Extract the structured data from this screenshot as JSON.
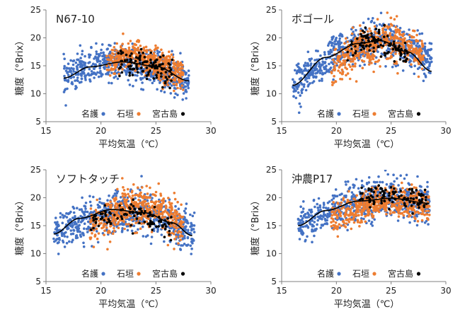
{
  "chart_data": [
    {
      "type": "scatter",
      "title": "N67-10",
      "xlabel": "平均気温（℃）",
      "ylabel": "糖度（°Brix）",
      "xlim": [
        15,
        30
      ],
      "ylim": [
        5,
        25
      ],
      "xticks": [
        "15",
        "20",
        "25",
        "30"
      ],
      "yticks": [
        "5",
        "10",
        "15",
        "20",
        "25"
      ],
      "grid": false,
      "legend_placement": "bottom-center",
      "series": [
        {
          "name": "名護",
          "color": "#4472C4",
          "x_range": [
            16.6,
            28.0
          ],
          "y_mean": [
            13.0,
            15.6,
            15.0,
            12.4
          ],
          "y_spread": 2.0
        },
        {
          "name": "石垣",
          "color": "#ED7D31",
          "x_range": [
            20.5,
            27.5
          ],
          "y_mean": [
            15.5,
            17.0,
            15.0,
            13.5
          ],
          "y_spread": 1.8
        },
        {
          "name": "宮古島",
          "color": "#000000",
          "x_range": [
            21.5,
            26.5
          ],
          "y_mean": [
            16.0,
            15.5,
            15.0,
            13.5
          ],
          "y_spread": 1.6
        }
      ],
      "trendline": {
        "points": [
          [
            16.6,
            12.8
          ],
          [
            19,
            14.8
          ],
          [
            22,
            15.7
          ],
          [
            25,
            14.9
          ],
          [
            28,
            12.3
          ]
        ],
        "color": "#000000"
      }
    },
    {
      "type": "scatter",
      "title": "ボゴール",
      "xlabel": "平均気温（℃）",
      "ylabel": "糖度（°Brix）",
      "xlim": [
        15,
        30
      ],
      "ylim": [
        5,
        25
      ],
      "xticks": [
        "15",
        "20",
        "25",
        "30"
      ],
      "yticks": [
        "5",
        "10",
        "15",
        "20",
        "25"
      ],
      "grid": false,
      "legend_placement": "bottom-center",
      "series": [
        {
          "name": "名護",
          "color": "#4472C4",
          "x_range": [
            16.0,
            28.7
          ],
          "y_mean": [
            11.5,
            17.5,
            20.0,
            15.5
          ],
          "y_spread": 2.3
        },
        {
          "name": "石垣",
          "color": "#ED7D31",
          "x_range": [
            19.5,
            28.0
          ],
          "y_mean": [
            14.5,
            18.5,
            19.5,
            17.0
          ],
          "y_spread": 2.2
        },
        {
          "name": "宮古島",
          "color": "#000000",
          "x_range": [
            21.0,
            26.5
          ],
          "y_mean": [
            17.5,
            19.5,
            19.0,
            17.0
          ],
          "y_spread": 1.6
        }
      ],
      "trendline": {
        "points": [
          [
            16,
            11.5
          ],
          [
            19,
            16.5
          ],
          [
            22,
            19.0
          ],
          [
            24,
            19.5
          ],
          [
            26.5,
            17.5
          ],
          [
            28.7,
            14.0
          ]
        ],
        "color": "#000000"
      }
    },
    {
      "type": "scatter",
      "title": "ソフトタッチ",
      "xlabel": "平均気温（℃）",
      "ylabel": "糖度（°Brix）",
      "xlim": [
        15,
        30
      ],
      "ylim": [
        5,
        25
      ],
      "xticks": [
        "15",
        "20",
        "25",
        "30"
      ],
      "yticks": [
        "5",
        "10",
        "15",
        "20",
        "25"
      ],
      "grid": false,
      "legend_placement": "bottom-center",
      "series": [
        {
          "name": "名護",
          "color": "#4472C4",
          "x_range": [
            15.7,
            28.5
          ],
          "y_mean": [
            13.5,
            17.0,
            17.5,
            13.5
          ],
          "y_spread": 2.4
        },
        {
          "name": "石垣",
          "color": "#ED7D31",
          "x_range": [
            19.0,
            27.5
          ],
          "y_mean": [
            15.0,
            17.5,
            18.5,
            15.5
          ],
          "y_spread": 2.4
        },
        {
          "name": "宮古島",
          "color": "#000000",
          "x_range": [
            19.0,
            26.5
          ],
          "y_mean": [
            16.0,
            17.5,
            16.5,
            14.0
          ],
          "y_spread": 1.6
        }
      ],
      "trendline": {
        "points": [
          [
            15.7,
            13.5
          ],
          [
            18,
            16.3
          ],
          [
            21,
            17.9
          ],
          [
            24,
            17.3
          ],
          [
            26.5,
            15.5
          ],
          [
            28.3,
            13.2
          ]
        ],
        "color": "#000000"
      }
    },
    {
      "type": "scatter",
      "title": "沖農P17",
      "xlabel": "平均気温（℃）",
      "ylabel": "糖度（°Brix）",
      "xlim": [
        15,
        30
      ],
      "ylim": [
        5,
        25
      ],
      "xticks": [
        "15",
        "20",
        "25",
        "30"
      ],
      "yticks": [
        "5",
        "10",
        "15",
        "20",
        "25"
      ],
      "grid": false,
      "legend_placement": "bottom-center",
      "series": [
        {
          "name": "名護",
          "color": "#4472C4",
          "x_range": [
            16.5,
            28.5
          ],
          "y_mean": [
            15.0,
            18.5,
            20.0,
            19.0
          ],
          "y_spread": 2.2
        },
        {
          "name": "石垣",
          "color": "#ED7D31",
          "x_range": [
            19.5,
            28.5
          ],
          "y_mean": [
            16.0,
            18.5,
            19.5,
            18.5
          ],
          "y_spread": 1.8
        },
        {
          "name": "宮古島",
          "color": "#000000",
          "x_range": [
            22.0,
            28.3
          ],
          "y_mean": [
            20.0,
            20.5,
            20.0,
            19.5
          ],
          "y_spread": 1.2
        }
      ],
      "trendline": {
        "points": [
          [
            16.5,
            15.0
          ],
          [
            19,
            17.7
          ],
          [
            22,
            19.4
          ],
          [
            25,
            19.9
          ],
          [
            28.5,
            19.0
          ]
        ],
        "color": "#000000"
      }
    }
  ]
}
